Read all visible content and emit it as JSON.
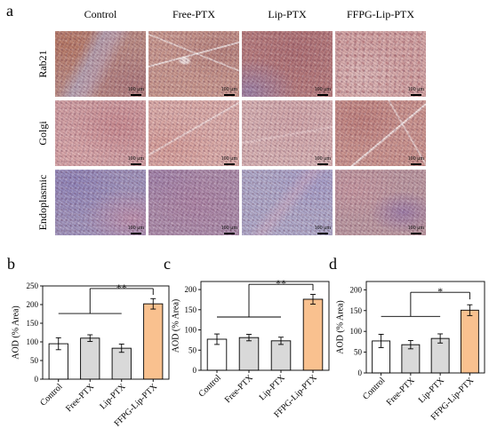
{
  "figure": {
    "panel_a": {
      "label": "a",
      "columns": [
        "Control",
        "Free-PTX",
        "Lip-PTX",
        "FFPG-Lip-PTX"
      ],
      "rows": [
        "Rab21",
        "Golgi",
        "Endoplasmic"
      ],
      "scale_bar_label": "100 μm"
    }
  },
  "chart_data": [
    {
      "panel_label": "b",
      "type": "bar",
      "categories": [
        "Control",
        "Free-PTX",
        "Lip-PTX",
        "FFPG-Lip-PTX"
      ],
      "values": [
        95,
        110,
        83,
        202
      ],
      "errors": [
        16,
        9,
        11,
        14
      ],
      "colors": [
        "#ffffff",
        "#d9d9d9",
        "#d9d9d9",
        "#f9c18f"
      ],
      "ylabel": "AOD (% Area)",
      "ylim": [
        0,
        250
      ],
      "yticks": [
        0,
        50,
        100,
        150,
        200,
        250
      ],
      "grid": false,
      "significance": {
        "group": [
          0,
          1,
          2
        ],
        "vs": 3,
        "label": "**"
      }
    },
    {
      "panel_label": "c",
      "type": "bar",
      "categories": [
        "Control",
        "Free-PTX",
        "Lip-PTX",
        "FFPG-Lip-PTX"
      ],
      "values": [
        77,
        81,
        73,
        176
      ],
      "errors": [
        13,
        8,
        9,
        12
      ],
      "colors": [
        "#ffffff",
        "#d9d9d9",
        "#d9d9d9",
        "#f9c18f"
      ],
      "ylabel": "AOD (% Area)",
      "ylim": [
        0,
        220
      ],
      "yticks": [
        0,
        50,
        100,
        150,
        200
      ],
      "grid": false,
      "significance": {
        "group": [
          0,
          1,
          2
        ],
        "vs": 3,
        "label": "**"
      }
    },
    {
      "panel_label": "d",
      "type": "bar",
      "categories": [
        "Control",
        "Free-PTX",
        "Lip-PTX",
        "FFPG-Lip-PTX"
      ],
      "values": [
        77,
        68,
        83,
        151
      ],
      "errors": [
        16,
        10,
        11,
        13
      ],
      "colors": [
        "#ffffff",
        "#d9d9d9",
        "#d9d9d9",
        "#f9c18f"
      ],
      "ylabel": "AOD (% Area)",
      "ylim": [
        0,
        220
      ],
      "yticks": [
        0,
        50,
        100,
        150,
        200
      ],
      "grid": false,
      "significance": {
        "group": [
          0,
          1,
          2
        ],
        "vs": 3,
        "label": "*"
      }
    }
  ]
}
